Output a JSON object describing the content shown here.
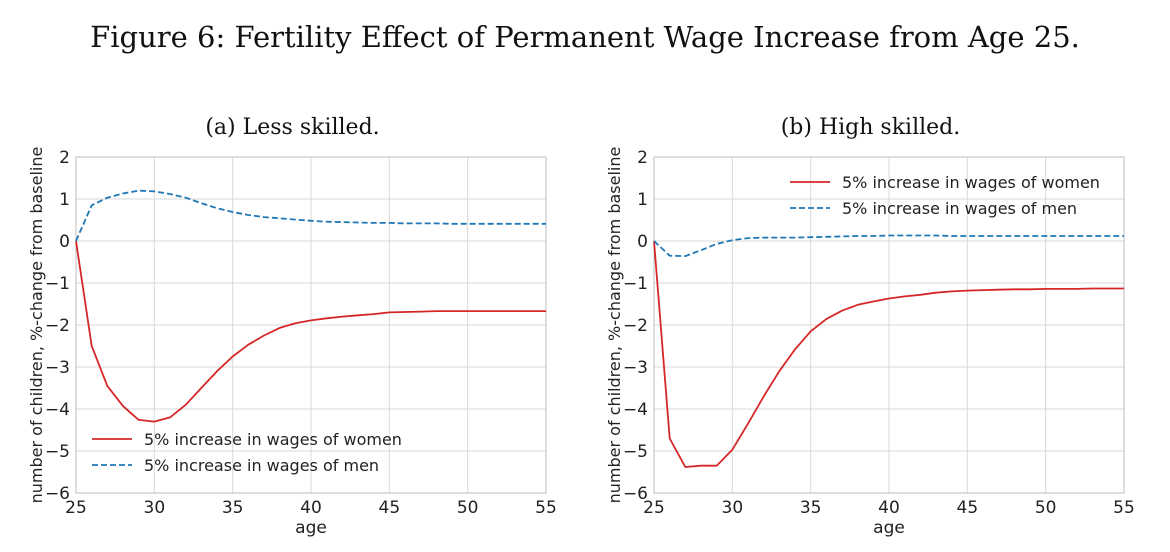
{
  "figure": {
    "title": "Figure 6: Fertility Effect of Permanent Wage Increase from Age 25."
  },
  "chart_data": [
    {
      "type": "line",
      "title": "(a) Less skilled.",
      "xlabel": "age",
      "ylabel": "number of children, %-change from baseline",
      "xlim": [
        25,
        55
      ],
      "ylim": [
        -6,
        2
      ],
      "xticks": [
        25,
        30,
        35,
        40,
        45,
        50,
        55
      ],
      "yticks": [
        -6,
        -5,
        -4,
        -3,
        -2,
        -1,
        0,
        1,
        2
      ],
      "grid": true,
      "legend_position": "lower-left",
      "series": [
        {
          "name": "5% increase in wages of women",
          "color": "#d62728",
          "style": "solid",
          "x": [
            25,
            26,
            27,
            28,
            29,
            30,
            31,
            32,
            33,
            34,
            35,
            36,
            37,
            38,
            39,
            40,
            41,
            42,
            43,
            44,
            45,
            46,
            47,
            48,
            49,
            50,
            51,
            52,
            53,
            54,
            55
          ],
          "y": [
            0,
            -2.5,
            -3.45,
            -3.93,
            -4.26,
            -4.3,
            -4.2,
            -3.9,
            -3.5,
            -3.1,
            -2.75,
            -2.47,
            -2.25,
            -2.07,
            -1.96,
            -1.89,
            -1.84,
            -1.8,
            -1.77,
            -1.74,
            -1.7,
            -1.69,
            -1.68,
            -1.67,
            -1.67,
            -1.67,
            -1.67,
            -1.67,
            -1.67,
            -1.67,
            -1.67
          ]
        },
        {
          "name": "5% increase in wages of men",
          "color": "#1f77b4",
          "style": "dashed",
          "x": [
            25,
            26,
            27,
            28,
            29,
            30,
            31,
            32,
            33,
            34,
            35,
            36,
            37,
            38,
            39,
            40,
            41,
            42,
            43,
            44,
            45,
            46,
            47,
            48,
            49,
            50,
            51,
            52,
            53,
            54,
            55
          ],
          "y": [
            0,
            0.85,
            1.03,
            1.13,
            1.2,
            1.18,
            1.12,
            1.03,
            0.9,
            0.78,
            0.69,
            0.62,
            0.57,
            0.54,
            0.51,
            0.48,
            0.46,
            0.45,
            0.44,
            0.43,
            0.43,
            0.42,
            0.42,
            0.42,
            0.41,
            0.41,
            0.41,
            0.41,
            0.41,
            0.41,
            0.41
          ]
        }
      ]
    },
    {
      "type": "line",
      "title": "(b) High skilled.",
      "xlabel": "age",
      "ylabel": "number of children, %-change from baseline",
      "xlim": [
        25,
        55
      ],
      "ylim": [
        -6,
        2
      ],
      "xticks": [
        25,
        30,
        35,
        40,
        45,
        50,
        55
      ],
      "yticks": [
        -6,
        -5,
        -4,
        -3,
        -2,
        -1,
        0,
        1,
        2
      ],
      "grid": true,
      "legend_position": "upper-right",
      "series": [
        {
          "name": "5% increase in wages of women",
          "color": "#d62728",
          "style": "solid",
          "x": [
            25,
            26,
            27,
            28,
            29,
            30,
            31,
            32,
            33,
            34,
            35,
            36,
            37,
            38,
            39,
            40,
            41,
            42,
            43,
            44,
            45,
            46,
            47,
            48,
            49,
            50,
            51,
            52,
            53,
            54,
            55
          ],
          "y": [
            0,
            -4.7,
            -5.38,
            -5.35,
            -5.35,
            -4.97,
            -4.35,
            -3.7,
            -3.1,
            -2.58,
            -2.15,
            -1.86,
            -1.66,
            -1.52,
            -1.44,
            -1.37,
            -1.32,
            -1.28,
            -1.23,
            -1.2,
            -1.18,
            -1.17,
            -1.16,
            -1.15,
            -1.15,
            -1.14,
            -1.14,
            -1.14,
            -1.13,
            -1.13,
            -1.13
          ]
        },
        {
          "name": "5% increase in wages of men",
          "color": "#1f77b4",
          "style": "dashed",
          "x": [
            25,
            26,
            27,
            28,
            29,
            30,
            31,
            32,
            33,
            34,
            35,
            36,
            37,
            38,
            39,
            40,
            41,
            42,
            43,
            44,
            45,
            46,
            47,
            48,
            49,
            50,
            51,
            52,
            53,
            54,
            55
          ],
          "y": [
            0,
            -0.35,
            -0.36,
            -0.22,
            -0.07,
            0.02,
            0.07,
            0.08,
            0.08,
            0.08,
            0.09,
            0.1,
            0.11,
            0.12,
            0.12,
            0.13,
            0.13,
            0.13,
            0.13,
            0.12,
            0.12,
            0.12,
            0.12,
            0.12,
            0.12,
            0.12,
            0.12,
            0.12,
            0.12,
            0.12,
            0.12
          ]
        }
      ]
    }
  ]
}
